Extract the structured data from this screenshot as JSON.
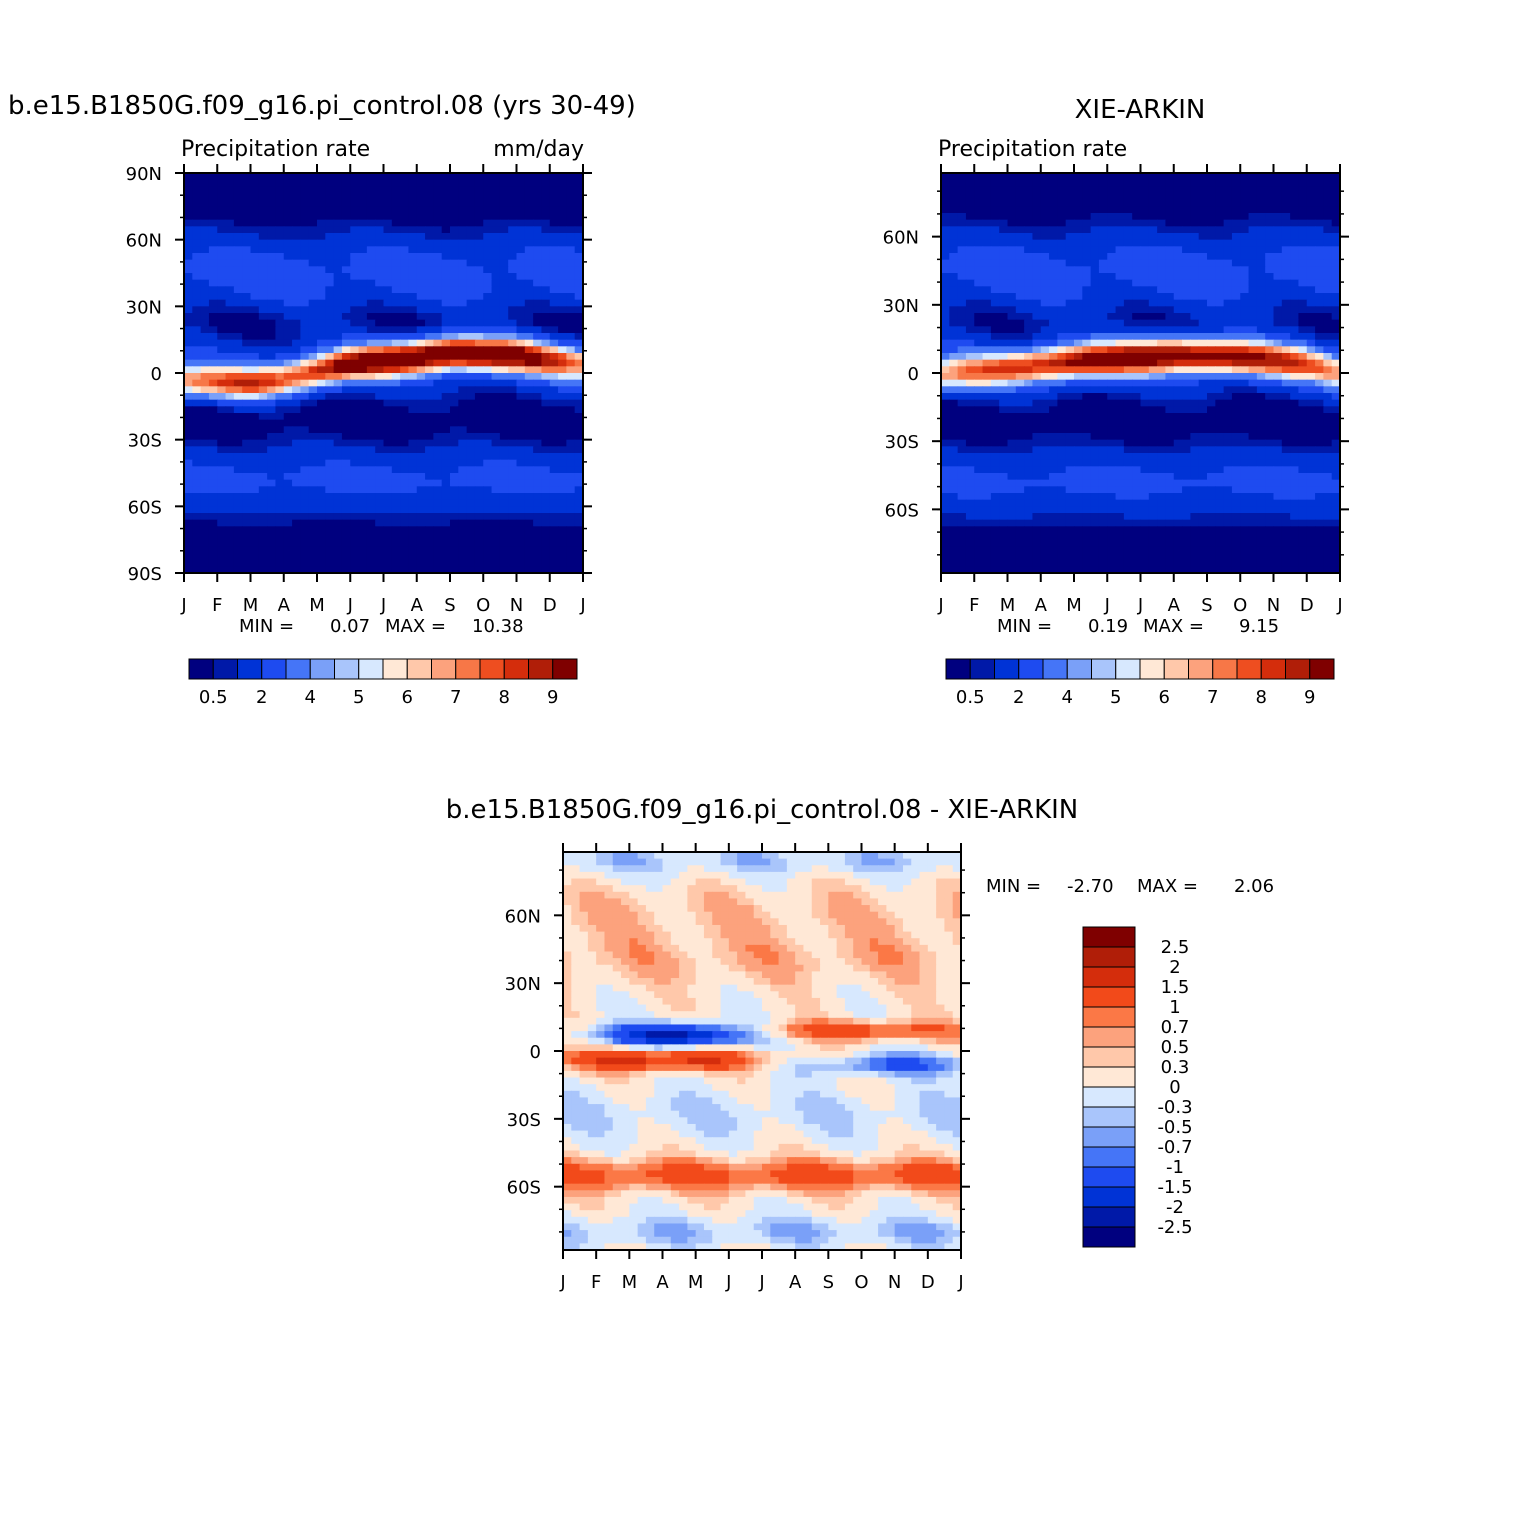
{
  "chart_data": [
    {
      "type": "heatmap",
      "title": "b.e15.B1850G.f09_g16.pi_control.08 (yrs 30-49)",
      "subtitle_left": "Precipitation rate",
      "subtitle_right": "mm/day",
      "x_ticks": [
        "J",
        "F",
        "M",
        "A",
        "M",
        "J",
        "J",
        "A",
        "S",
        "O",
        "N",
        "D",
        "J"
      ],
      "y_ticks": [
        "90N",
        "60N",
        "30N",
        "0",
        "30S",
        "60S",
        "90S"
      ],
      "ylim": [
        -90,
        90
      ],
      "min_label": "MIN =",
      "min_value": "0.07",
      "max_label": "MAX =",
      "max_value": "10.38",
      "colorbar_labels": [
        "0.5",
        "2",
        "4",
        "5",
        "6",
        "7",
        "8",
        "9"
      ],
      "colorbar_orientation": "horizontal",
      "colorbar_colors": [
        "#00007f",
        "#0019a8",
        "#0033d6",
        "#1e4bf0",
        "#4575f7",
        "#7aa0f8",
        "#a9c5fb",
        "#d7e8fe",
        "#ffe8d6",
        "#ffc8aa",
        "#fca27d",
        "#f77747",
        "#ee4e20",
        "#d42d0c",
        "#b01e08",
        "#7f0000"
      ],
      "itcz": [
        {
          "m": 0,
          "lat": -4,
          "v": 6.0
        },
        {
          "m": 2,
          "lat": -5,
          "v": 7.5
        },
        {
          "m": 3,
          "lat": -3,
          "v": 7.0
        },
        {
          "m": 5,
          "lat": 4,
          "v": 8.5
        },
        {
          "m": 8,
          "lat": 9,
          "v": 10.0
        },
        {
          "m": 10,
          "lat": 8,
          "v": 8.8
        },
        {
          "m": 12,
          "lat": 4,
          "v": 6.0
        }
      ]
    },
    {
      "type": "heatmap",
      "title": "XIE-ARKIN",
      "subtitle_left": "Precipitation rate",
      "x_ticks": [
        "J",
        "F",
        "M",
        "A",
        "M",
        "J",
        "J",
        "A",
        "S",
        "O",
        "N",
        "D",
        "J"
      ],
      "y_ticks": [
        "60N",
        "30N",
        "0",
        "30S",
        "60S"
      ],
      "ylim": [
        -88,
        88
      ],
      "min_label": "MIN =",
      "min_value": "0.19",
      "max_label": "MAX =",
      "max_value": "9.15",
      "colorbar_labels": [
        "0.5",
        "2",
        "4",
        "5",
        "6",
        "7",
        "8",
        "9"
      ],
      "colorbar_orientation": "horizontal",
      "itcz": [
        {
          "m": 0,
          "lat": -1,
          "v": 5.5
        },
        {
          "m": 2,
          "lat": 2,
          "v": 7.0
        },
        {
          "m": 4,
          "lat": 5,
          "v": 8.5
        },
        {
          "m": 7,
          "lat": 8,
          "v": 9.0
        },
        {
          "m": 9,
          "lat": 7,
          "v": 8.5
        },
        {
          "m": 11,
          "lat": 4,
          "v": 6.5
        },
        {
          "m": 12,
          "lat": 0,
          "v": 5.5
        }
      ]
    },
    {
      "type": "heatmap",
      "title": "b.e15.B1850G.f09_g16.pi_control.08 - XIE-ARKIN",
      "x_ticks": [
        "J",
        "F",
        "M",
        "A",
        "M",
        "J",
        "J",
        "A",
        "S",
        "O",
        "N",
        "D",
        "J"
      ],
      "y_ticks": [
        "60N",
        "30N",
        "0",
        "30S",
        "60S"
      ],
      "ylim": [
        -88,
        88
      ],
      "min_label": "MIN =",
      "min_value": "-2.70",
      "max_label": "MAX =",
      "max_value": "2.06",
      "colorbar_labels": [
        "2.5",
        "2",
        "1.5",
        "1",
        "0.7",
        "0.5",
        "0.3",
        "0",
        "-0.3",
        "-0.5",
        "-0.7",
        "-1",
        "-1.5",
        "-2",
        "-2.5"
      ],
      "colorbar_orientation": "vertical",
      "colorbar_colors": [
        "#7f0000",
        "#b01e08",
        "#d42d0c",
        "#f24a1a",
        "#fb7846",
        "#fca27d",
        "#ffc8aa",
        "#ffe8d6",
        "#d7e8fe",
        "#a9c5fb",
        "#7aa0f8",
        "#4575f7",
        "#1e4bf0",
        "#0033d6",
        "#0019a8",
        "#00007f"
      ]
    }
  ]
}
